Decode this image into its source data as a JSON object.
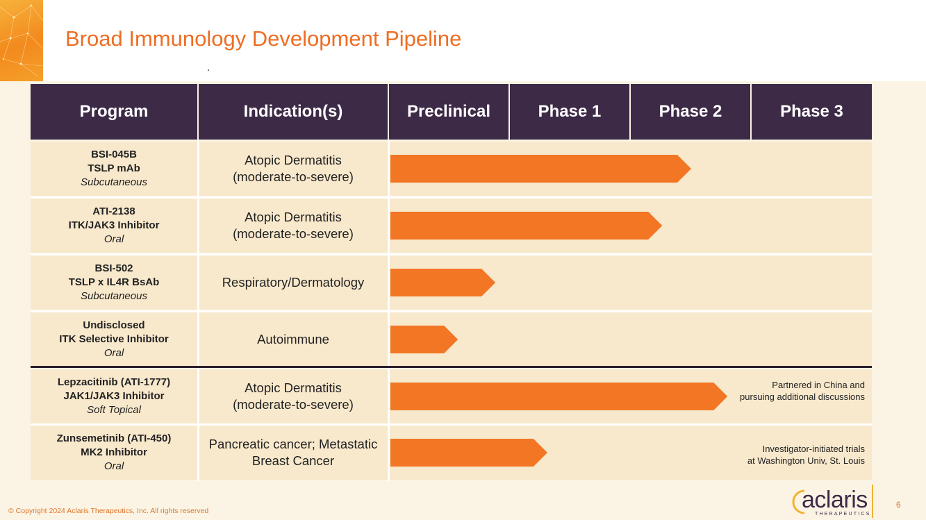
{
  "title": "Broad Immunology Development Pipeline",
  "colors": {
    "accent": "#ee6d23",
    "header_bg": "#3d2a47",
    "row_bg": "#f8e8cc",
    "bar": "#f27623"
  },
  "stages": [
    "Preclinical",
    "Phase 1",
    "Phase 2",
    "Phase 3"
  ],
  "headers": {
    "program": "Program",
    "indication": "Indication(s)",
    "preclinical": "Preclinical",
    "phase1": "Phase 1",
    "phase2": "Phase 2",
    "phase3": "Phase 3"
  },
  "rows": [
    {
      "name": "BSI-045B",
      "target": "TSLP mAb",
      "route": "Subcutaneous",
      "indication_line1": "Atopic Dermatitis",
      "indication_line2": "(moderate-to-severe)",
      "progress_stages": 2.5,
      "note_line1": "",
      "note_line2": ""
    },
    {
      "name": "ATI-2138",
      "target": "ITK/JAK3 Inhibitor",
      "route": "Oral",
      "indication_line1": "Atopic Dermatitis",
      "indication_line2": "(moderate-to-severe)",
      "progress_stages": 2.26,
      "note_line1": "",
      "note_line2": ""
    },
    {
      "name": "BSI-502",
      "target": "TSLP x IL4R BsAb",
      "route": "Subcutaneous",
      "indication_line1": "Respiratory/Dermatology",
      "indication_line2": "",
      "progress_stages": 0.88,
      "note_line1": "",
      "note_line2": ""
    },
    {
      "name": "Undisclosed",
      "target": "ITK Selective Inhibitor",
      "route": "Oral",
      "indication_line1": "Autoimmune",
      "indication_line2": "",
      "progress_stages": 0.57,
      "note_line1": "",
      "note_line2": ""
    },
    {
      "name": "Lepzacitinib (ATI-1777)",
      "target": "JAK1/JAK3 Inhibitor",
      "route": "Soft Topical",
      "indication_line1": "Atopic Dermatitis",
      "indication_line2": "(moderate-to-severe)",
      "progress_stages": 2.8,
      "note_line1": "Partnered in China and",
      "note_line2": "pursuing additional discussions"
    },
    {
      "name": "Zunsemetinib (ATI-450)",
      "target": "MK2 Inhibitor",
      "route": "Oral",
      "indication_line1": "Pancreatic cancer; Metastatic",
      "indication_line2": "Breast Cancer",
      "progress_stages": 1.31,
      "note_line1": "Investigator-initiated trials",
      "note_line2": "at Washington Univ, St. Louis"
    }
  ],
  "footer": "© Copyright 2024 Aclaris Therapeutics, Inc. All rights reserved",
  "logo": {
    "word": "aclaris",
    "sub": "THERAPEUTICS"
  },
  "page_number": "6"
}
